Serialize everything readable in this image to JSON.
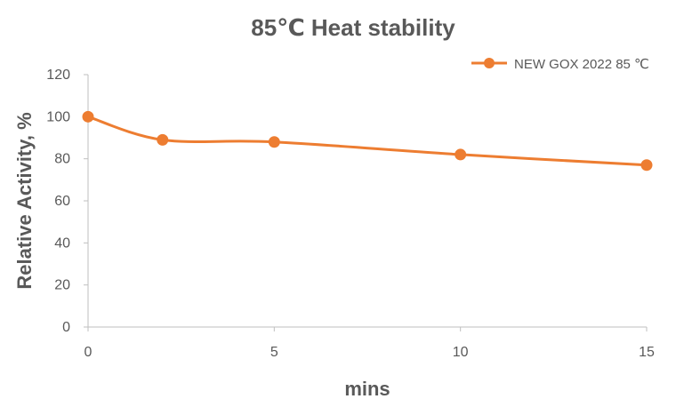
{
  "chart_data": {
    "type": "line",
    "title": "85℃ Heat stability",
    "xlabel": "mins",
    "ylabel": "Relative Activity, %",
    "xlim": [
      0,
      15
    ],
    "ylim": [
      0,
      120
    ],
    "x_ticks": [
      0,
      5,
      10,
      15
    ],
    "y_ticks": [
      0,
      20,
      40,
      60,
      80,
      100,
      120
    ],
    "grid": false,
    "legend_position": "top-right",
    "smooth": true,
    "series": [
      {
        "name": "NEW GOX 2022 85 ℃",
        "color": "#ED7D31",
        "x": [
          0,
          2,
          5,
          10,
          15
        ],
        "y": [
          100,
          89,
          88,
          82,
          77
        ]
      }
    ]
  }
}
